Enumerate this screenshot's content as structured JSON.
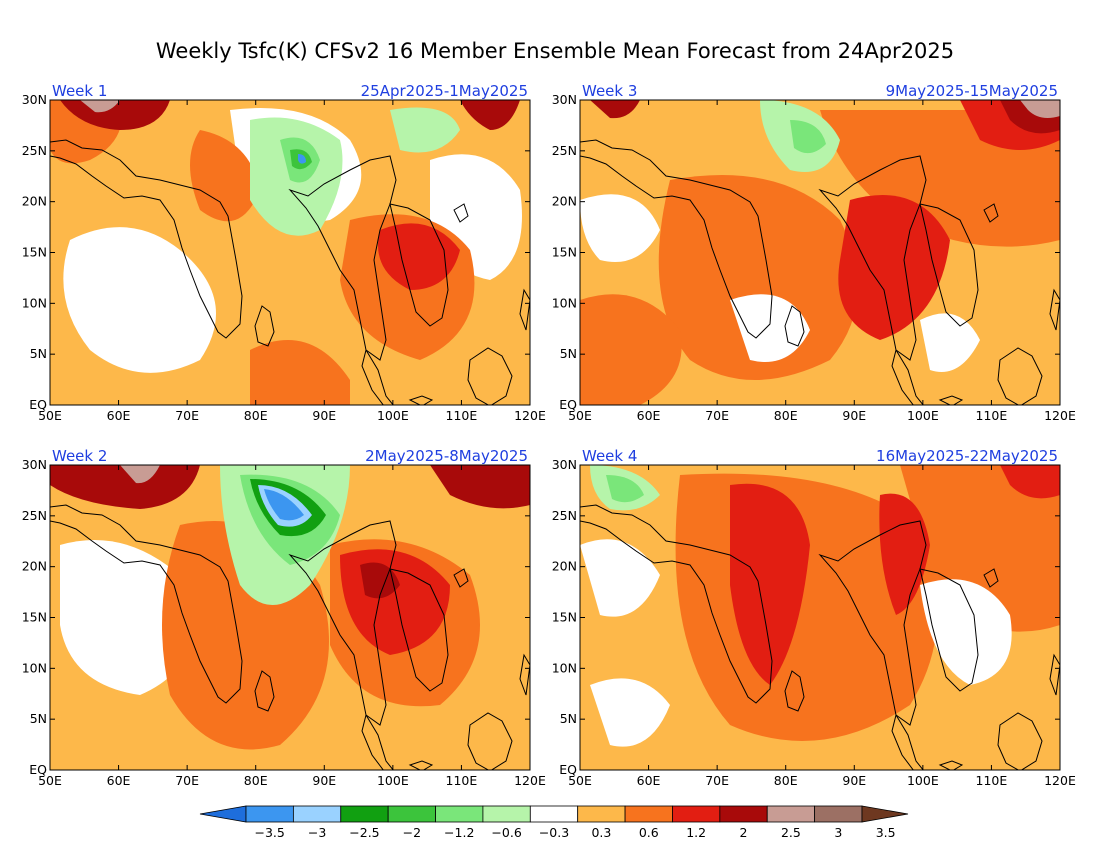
{
  "title": "Weekly Tsfc(K) CFSv2 16 Member Ensemble Mean Forecast from 24Apr2025",
  "panels": [
    {
      "week": "Week 1",
      "dates": "25Apr2025-1May2025"
    },
    {
      "week": "Week 3",
      "dates": "9May2025-15May2025"
    },
    {
      "week": "Week 2",
      "dates": "2May2025-8May2025"
    },
    {
      "week": "Week 4",
      "dates": "16May2025-22May2025"
    }
  ],
  "axes": {
    "lat_labels": [
      "EQ",
      "5N",
      "10N",
      "15N",
      "20N",
      "25N",
      "30N"
    ],
    "lon_labels": [
      "50E",
      "60E",
      "70E",
      "80E",
      "90E",
      "100E",
      "110E",
      "120E"
    ]
  },
  "colorbar": {
    "labels": [
      "-3.5",
      "-3",
      "-2.5",
      "-2",
      "-1.2",
      "-0.6",
      "-0.3",
      "0.3",
      "0.6",
      "1.2",
      "2",
      "2.5",
      "3",
      "3.5"
    ],
    "colors": [
      "#1e6edc",
      "#3c96f0",
      "#9ad2ff",
      "#11a011",
      "#3cc43c",
      "#7ae67a",
      "#b6f4aa",
      "#ffffff",
      "#fdb84a",
      "#f7731e",
      "#e21e12",
      "#a80a0a",
      "#c89c94",
      "#9c7064",
      "#6e3820"
    ]
  },
  "colors": {
    "date_label": "#1f3fe0",
    "coastline": "#000000"
  }
}
